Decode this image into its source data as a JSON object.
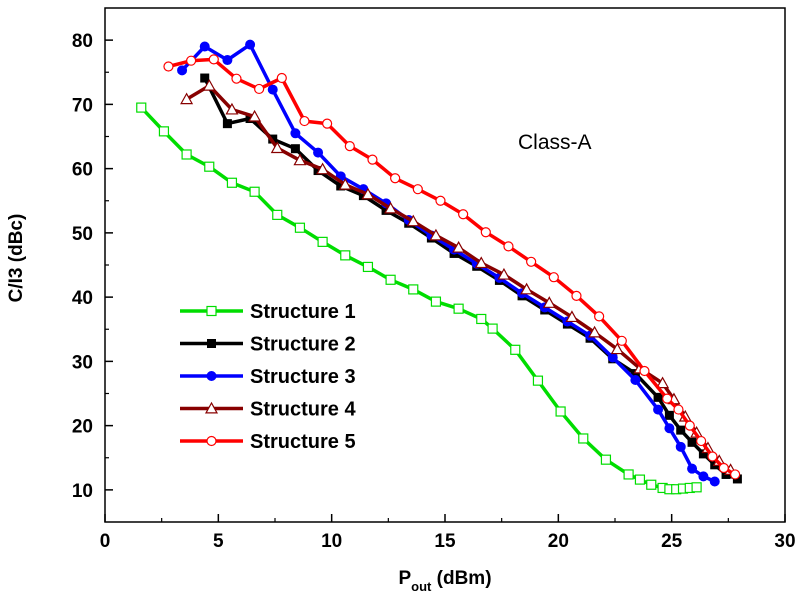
{
  "chart_data": {
    "type": "line",
    "title": "",
    "annotation": "Class-A",
    "xlabel": {
      "main": "P",
      "sub": "out",
      "rest": " (dBm)"
    },
    "ylabel": "C/I3 (dBc)",
    "xlim": [
      0,
      30
    ],
    "ylim": [
      5,
      85
    ],
    "xticks": [
      0,
      5,
      10,
      15,
      20,
      25,
      30
    ],
    "yticks": [
      10,
      20,
      30,
      40,
      50,
      60,
      70,
      80
    ],
    "grid": false,
    "legend_position": "bottom-left",
    "series": [
      {
        "name": "Structure 1",
        "color": "#00dd00",
        "marker": "open-square",
        "x": [
          1.6,
          2.6,
          3.6,
          4.6,
          5.6,
          6.6,
          7.6,
          8.6,
          9.6,
          10.6,
          11.6,
          12.6,
          13.6,
          14.6,
          15.6,
          16.6,
          17.1,
          18.1,
          19.1,
          20.1,
          21.1,
          22.1,
          23.1,
          23.6,
          24.1,
          24.6,
          24.9,
          25.2,
          25.5,
          25.8,
          26.1
        ],
        "y": [
          69.5,
          65.8,
          62.2,
          60.3,
          57.8,
          56.4,
          52.8,
          50.8,
          48.6,
          46.5,
          44.7,
          42.7,
          41.2,
          39.3,
          38.2,
          36.6,
          35.1,
          31.8,
          27.0,
          22.2,
          18.0,
          14.7,
          12.4,
          11.6,
          10.8,
          10.3,
          10.1,
          10.1,
          10.2,
          10.3,
          10.4
        ]
      },
      {
        "name": "Structure 2",
        "color": "#000000",
        "marker": "filled-square",
        "x": [
          4.4,
          5.4,
          6.4,
          7.4,
          8.4,
          9.4,
          10.4,
          11.4,
          12.4,
          13.4,
          14.4,
          15.4,
          16.4,
          17.4,
          18.4,
          19.4,
          20.4,
          21.4,
          22.4,
          23.4,
          24.4,
          24.9,
          25.4,
          25.9,
          26.4,
          26.9,
          27.4,
          27.9
        ],
        "y": [
          74.1,
          67.0,
          67.8,
          64.6,
          63.1,
          59.7,
          57.3,
          55.8,
          53.5,
          51.5,
          49.2,
          46.8,
          44.8,
          42.6,
          40.2,
          38.0,
          35.8,
          33.6,
          30.4,
          28.1,
          24.4,
          21.6,
          19.3,
          17.4,
          15.6,
          13.9,
          12.4,
          11.7
        ]
      },
      {
        "name": "Structure 3",
        "color": "#0000ff",
        "marker": "filled-circle",
        "x": [
          3.4,
          4.4,
          5.4,
          6.4,
          7.4,
          8.4,
          9.4,
          10.4,
          11.4,
          12.4,
          13.4,
          14.4,
          15.4,
          16.4,
          17.4,
          18.4,
          19.4,
          20.4,
          21.4,
          22.4,
          23.4,
          24.4,
          24.9,
          25.4,
          25.9,
          26.4,
          26.9
        ],
        "y": [
          75.3,
          79.0,
          76.9,
          79.3,
          72.3,
          65.5,
          62.5,
          58.8,
          56.8,
          54.6,
          52.0,
          49.6,
          47.4,
          45.2,
          43.0,
          40.6,
          38.4,
          36.2,
          34.0,
          30.6,
          27.1,
          22.5,
          19.6,
          16.7,
          13.3,
          12.1,
          11.3
        ]
      },
      {
        "name": "Structure 4",
        "color": "#880000",
        "marker": "open-triangle",
        "x": [
          3.6,
          4.6,
          5.6,
          6.6,
          7.6,
          8.6,
          9.6,
          10.6,
          11.6,
          12.6,
          13.6,
          14.6,
          15.6,
          16.6,
          17.6,
          18.6,
          19.6,
          20.6,
          21.6,
          22.6,
          23.6,
          24.6,
          25.1,
          25.6,
          26.1,
          26.6,
          27.1,
          27.6
        ],
        "y": [
          70.8,
          72.9,
          69.2,
          68.1,
          63.2,
          61.3,
          59.9,
          57.5,
          56.0,
          53.8,
          51.8,
          49.6,
          47.7,
          45.3,
          43.5,
          41.2,
          39.1,
          36.9,
          34.5,
          31.9,
          28.9,
          26.6,
          24.1,
          21.4,
          18.9,
          16.5,
          14.5,
          13.1
        ]
      },
      {
        "name": "Structure 5",
        "color": "#ff0000",
        "marker": "open-circle",
        "x": [
          2.8,
          3.8,
          4.8,
          5.8,
          6.8,
          7.8,
          8.8,
          9.8,
          10.8,
          11.8,
          12.8,
          13.8,
          14.8,
          15.8,
          16.8,
          17.8,
          18.8,
          19.8,
          20.8,
          21.8,
          22.8,
          23.8,
          24.8,
          25.3,
          25.8,
          26.3,
          26.8,
          27.3,
          27.8
        ],
        "y": [
          75.9,
          76.8,
          77.0,
          74.0,
          72.4,
          74.1,
          67.4,
          67.0,
          63.5,
          61.4,
          58.5,
          56.8,
          55.0,
          52.9,
          50.1,
          47.9,
          45.5,
          43.1,
          40.2,
          37.0,
          33.2,
          28.5,
          24.2,
          22.5,
          20.0,
          17.6,
          15.2,
          13.4,
          12.4
        ]
      }
    ]
  }
}
